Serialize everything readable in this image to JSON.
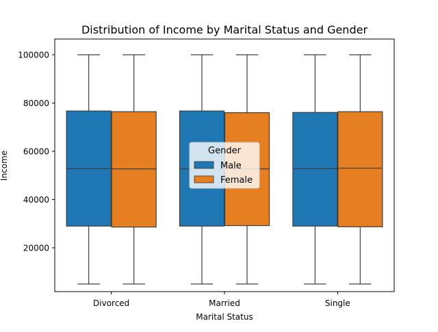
{
  "chart_data": {
    "type": "boxplot",
    "title": "Distribution of Income by Marital Status and Gender",
    "xlabel": "Marital Status",
    "ylabel": "Income",
    "categories": [
      "Divorced",
      "Married",
      "Single"
    ],
    "ylim": [
      0,
      108000
    ],
    "yticks": [
      20000,
      40000,
      60000,
      80000,
      100000
    ],
    "legend": {
      "title": "Gender",
      "placement": "center"
    },
    "series": [
      {
        "name": "Male",
        "color": "#1f77b4",
        "boxes": [
          {
            "min": 5000,
            "q1": 29000,
            "median": 52800,
            "q3": 76700,
            "max": 100000
          },
          {
            "min": 5000,
            "q1": 29000,
            "median": 52700,
            "q3": 76700,
            "max": 100000
          },
          {
            "min": 5000,
            "q1": 29000,
            "median": 52800,
            "q3": 76100,
            "max": 100000
          }
        ]
      },
      {
        "name": "Female",
        "color": "#e67e22",
        "boxes": [
          {
            "min": 5000,
            "q1": 28600,
            "median": 52700,
            "q3": 76400,
            "max": 100000
          },
          {
            "min": 5000,
            "q1": 29200,
            "median": 52700,
            "q3": 76000,
            "max": 100000
          },
          {
            "min": 5000,
            "q1": 28700,
            "median": 53000,
            "q3": 76400,
            "max": 100000
          }
        ]
      }
    ]
  }
}
